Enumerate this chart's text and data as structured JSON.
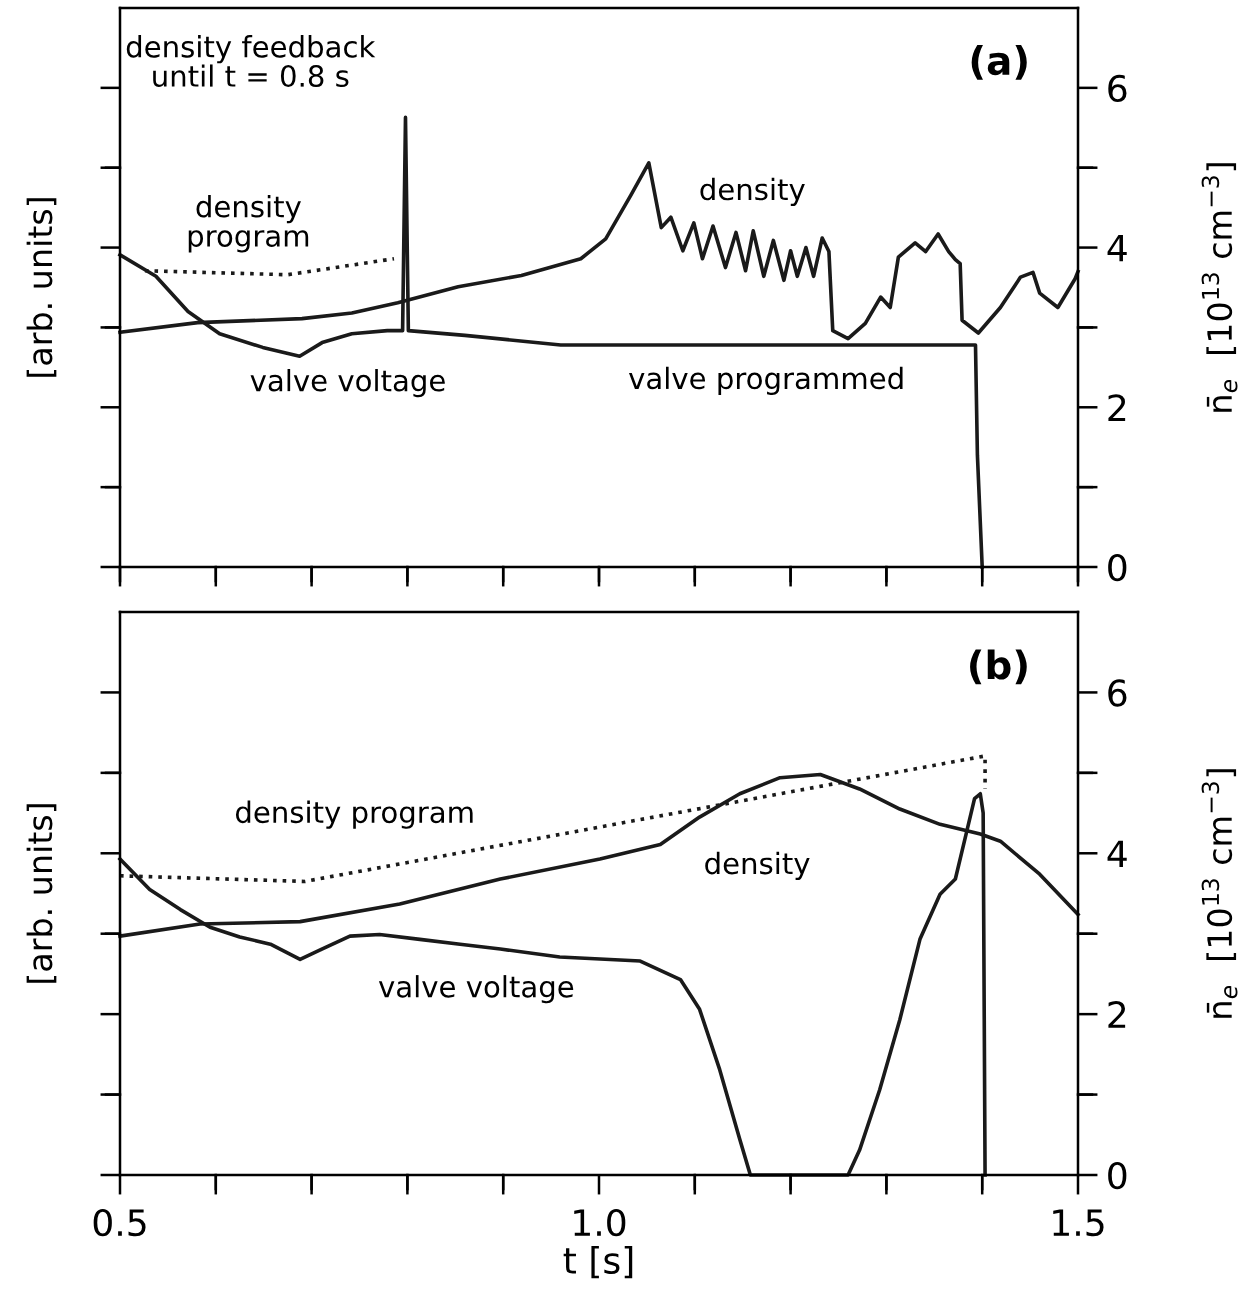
{
  "chart_data": [
    {
      "type": "line",
      "ylabel": "[arb. units]",
      "y2label": "n̄$_{e}$  [10$^{13}$ cm$^{−3}$]",
      "xlim": [
        0.5,
        1.5
      ],
      "xticks": [
        {
          "value": 0.5,
          "label": null
        },
        {
          "value": 0.6,
          "label": null
        },
        {
          "value": 0.7,
          "label": null
        },
        {
          "value": 0.8,
          "label": null
        },
        {
          "value": 0.9,
          "label": null
        },
        {
          "value": 1.0,
          "label": null
        },
        {
          "value": 1.1,
          "label": null
        },
        {
          "value": 1.2,
          "label": null
        },
        {
          "value": 1.3,
          "label": null
        },
        {
          "value": 1.4,
          "label": null
        },
        {
          "value": 1.5,
          "label": null
        }
      ],
      "ylim": [
        0,
        7
      ],
      "yticks": [
        0,
        {
          "value": 1,
          "label": null
        },
        2,
        {
          "value": 3,
          "label": null
        },
        4,
        {
          "value": 5,
          "label": null
        },
        6
      ],
      "tick_labels": "y",
      "grid": false,
      "legend": false,
      "marker": "none",
      "series": [
        {
          "color": "#1a1a1a",
          "line_style": "solid",
          "x": [
            0.5,
            0.581,
            0.69,
            0.742,
            0.79,
            0.853,
            0.919,
            0.981,
            1.007,
            1.033,
            1.052,
            1.065,
            1.075,
            1.0875,
            1.099,
            1.108,
            1.119,
            1.132,
            1.143,
            1.153,
            1.161,
            1.172,
            1.182,
            1.193,
            1.2,
            1.207,
            1.216,
            1.224,
            1.233,
            1.24,
            1.244,
            1.26,
            1.278,
            1.294,
            1.304,
            1.3125,
            1.33,
            1.341,
            1.354,
            1.365,
            1.372,
            1.377,
            1.379,
            1.396,
            1.419,
            1.44,
            1.453,
            1.46,
            1.479,
            1.497,
            1.5
          ],
          "values": [
            2.94,
            3.06,
            3.11,
            3.18,
            3.31,
            3.51,
            3.65,
            3.86,
            4.11,
            4.65,
            5.06,
            4.25,
            4.38,
            3.96,
            4.31,
            3.86,
            4.27,
            3.75,
            4.19,
            3.71,
            4.21,
            3.64,
            4.09,
            3.59,
            3.96,
            3.64,
            4.0,
            3.64,
            4.12,
            3.95,
            2.96,
            2.86,
            3.05,
            3.38,
            3.25,
            3.88,
            4.06,
            3.95,
            4.17,
            3.95,
            3.85,
            3.8,
            3.09,
            2.93,
            3.25,
            3.63,
            3.69,
            3.43,
            3.25,
            3.61,
            3.7
          ]
        },
        {
          "color": "#1a1a1a",
          "line_style": "solid",
          "x": [
            0.5,
            0.5375,
            0.571,
            0.604,
            0.649,
            0.6875,
            0.711,
            0.742,
            0.779,
            0.795,
            0.798,
            0.801,
            0.86,
            0.96,
            1.393,
            1.395,
            1.4
          ],
          "values": [
            3.91,
            3.64,
            3.2,
            2.92,
            2.75,
            2.64,
            2.81,
            2.92,
            2.96,
            2.96,
            5.63,
            2.96,
            2.9,
            2.78,
            2.78,
            1.4,
            0
          ]
        },
        {
          "color": "#1a1a1a",
          "line_style": "dotted",
          "x": [
            0.526,
            0.675,
            0.786
          ],
          "values": [
            3.71,
            3.66,
            3.86
          ]
        }
      ],
      "annotations": [
        "(a)",
        "density feedback\nuntil t = 0.8 s",
        "density\nprogram",
        "density",
        "valve voltage",
        "valve programmed"
      ]
    },
    {
      "type": "line",
      "xlabel": "t [s]",
      "ylabel": "[arb. units]",
      "y2label": "n̄$_{e}$  [10$^{13}$ cm$^{−3}$]",
      "xlim": [
        0.5,
        1.5
      ],
      "xticks": [
        0.5,
        {
          "value": 0.6,
          "label": null
        },
        {
          "value": 0.7,
          "label": null
        },
        {
          "value": 0.8,
          "label": null
        },
        {
          "value": 0.9,
          "label": null
        },
        {
          "value": 1.0,
          "label": "1.0"
        },
        {
          "value": 1.1,
          "label": null
        },
        {
          "value": 1.2,
          "label": null
        },
        {
          "value": 1.3,
          "label": null
        },
        {
          "value": 1.4,
          "label": null
        },
        1.5
      ],
      "ylim": [
        0,
        7
      ],
      "yticks": [
        0,
        {
          "value": 1,
          "label": null
        },
        2,
        {
          "value": 3,
          "label": null
        },
        4,
        {
          "value": 5,
          "label": null
        },
        6
      ],
      "grid": false,
      "legend": false,
      "marker": "none",
      "series": [
        {
          "color": "#1a1a1a",
          "line_style": "solid",
          "x": [
            0.5,
            0.5835,
            0.688,
            0.792,
            0.897,
            1.001,
            1.064,
            1.105,
            1.147,
            1.189,
            1.231,
            1.272,
            1.314,
            1.356,
            1.398,
            1.419,
            1.46,
            1.5
          ],
          "values": [
            2.97,
            3.12,
            3.15,
            3.37,
            3.68,
            3.93,
            4.11,
            4.45,
            4.74,
            4.94,
            4.98,
            4.8,
            4.55,
            4.36,
            4.24,
            4.15,
            3.74,
            3.24
          ]
        },
        {
          "color": "#1a1a1a",
          "line_style": "solid",
          "x": [
            0.5,
            0.531,
            0.563,
            0.594,
            0.625,
            0.657,
            0.688,
            0.709,
            0.74,
            0.771,
            0.813,
            0.855,
            0.897,
            0.959,
            1.043,
            1.085,
            1.105,
            1.126,
            1.147,
            1.158,
            1.26,
            1.272,
            1.293,
            1.314,
            1.335,
            1.356,
            1.372,
            1.382,
            1.392,
            1.398,
            1.401,
            1.403
          ],
          "values": [
            3.93,
            3.55,
            3.3,
            3.08,
            2.96,
            2.87,
            2.68,
            2.8,
            2.97,
            2.99,
            2.93,
            2.87,
            2.81,
            2.71,
            2.66,
            2.43,
            2.06,
            1.31,
            0.44,
            0,
            0,
            0.31,
            1.06,
            1.93,
            2.93,
            3.49,
            3.68,
            4.18,
            4.68,
            4.74,
            4.5,
            0
          ]
        },
        {
          "color": "#1a1a1a",
          "line_style": "dotted",
          "x": [
            0.5,
            0.693,
            1.403,
            1.403
          ],
          "values": [
            3.72,
            3.65,
            5.21,
            4.8
          ]
        }
      ],
      "annotations": [
        "(b)",
        "density program",
        "density",
        "valve voltage"
      ]
    }
  ]
}
